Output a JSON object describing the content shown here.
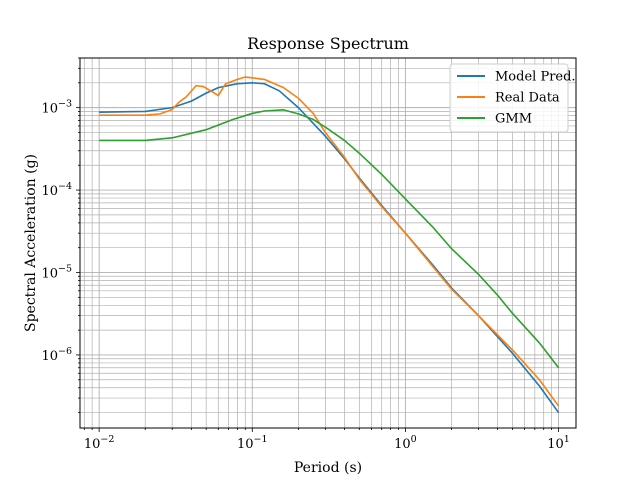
{
  "chart_data": {
    "type": "line",
    "title": "Response Spectrum",
    "xlabel": "Period (s)",
    "ylabel": "Spectral Acceleration (g)",
    "x_scale": "log",
    "y_scale": "log",
    "xlim": [
      0.0075,
      13
    ],
    "ylim": [
      1.3e-07,
      0.004
    ],
    "grid": "both, major and minor",
    "legend_position": "top-right",
    "x_ticks": [
      {
        "value": 0.01,
        "mantissa": "10",
        "exp": "−2"
      },
      {
        "value": 0.1,
        "mantissa": "10",
        "exp": "−1"
      },
      {
        "value": 1,
        "mantissa": "10",
        "exp": "0"
      },
      {
        "value": 10,
        "mantissa": "10",
        "exp": "1"
      }
    ],
    "y_ticks": [
      {
        "value": 1e-06,
        "mantissa": "10",
        "exp": "−6"
      },
      {
        "value": 1e-05,
        "mantissa": "10",
        "exp": "−5"
      },
      {
        "value": 0.0001,
        "mantissa": "10",
        "exp": "−4"
      },
      {
        "value": 0.001,
        "mantissa": "10",
        "exp": "−3"
      }
    ],
    "series": [
      {
        "name": "Model Pred.",
        "color": "#1f77b4",
        "points": [
          [
            0.01,
            0.00088
          ],
          [
            0.02,
            0.0009
          ],
          [
            0.03,
            0.001
          ],
          [
            0.04,
            0.0012
          ],
          [
            0.05,
            0.0015
          ],
          [
            0.06,
            0.00175
          ],
          [
            0.08,
            0.00195
          ],
          [
            0.1,
            0.002
          ],
          [
            0.12,
            0.00195
          ],
          [
            0.15,
            0.0016
          ],
          [
            0.2,
            0.001
          ],
          [
            0.3,
            0.00045
          ],
          [
            0.4,
            0.00024
          ],
          [
            0.5,
            0.00014
          ],
          [
            0.7,
            6.5e-05
          ],
          [
            1.0,
            3e-05
          ],
          [
            1.5,
            1.25e-05
          ],
          [
            2.0,
            6.5e-06
          ],
          [
            3.0,
            3e-06
          ],
          [
            5.0,
            1.05e-06
          ],
          [
            7.5,
            4.2e-07
          ],
          [
            10,
            2e-07
          ]
        ]
      },
      {
        "name": "Real Data",
        "color": "#ff7f0e",
        "points": [
          [
            0.01,
            0.00081
          ],
          [
            0.02,
            0.00081
          ],
          [
            0.025,
            0.00084
          ],
          [
            0.03,
            0.00095
          ],
          [
            0.033,
            0.00115
          ],
          [
            0.037,
            0.00135
          ],
          [
            0.043,
            0.00185
          ],
          [
            0.048,
            0.0018
          ],
          [
            0.055,
            0.00155
          ],
          [
            0.06,
            0.0014
          ],
          [
            0.067,
            0.00195
          ],
          [
            0.08,
            0.0022
          ],
          [
            0.09,
            0.00235
          ],
          [
            0.1,
            0.0023
          ],
          [
            0.12,
            0.0022
          ],
          [
            0.16,
            0.00175
          ],
          [
            0.2,
            0.0013
          ],
          [
            0.25,
            0.00085
          ],
          [
            0.3,
            0.0005
          ],
          [
            0.4,
            0.00025
          ],
          [
            0.5,
            0.000135
          ],
          [
            0.7,
            6.3e-05
          ],
          [
            1.0,
            3e-05
          ],
          [
            1.5,
            1.2e-05
          ],
          [
            2.0,
            6.3e-06
          ],
          [
            3.0,
            3e-06
          ],
          [
            5.0,
            1.15e-06
          ],
          [
            7.5,
            5e-07
          ],
          [
            10,
            2.4e-07
          ]
        ]
      },
      {
        "name": "GMM",
        "color": "#2ca02c",
        "points": [
          [
            0.01,
            0.0004
          ],
          [
            0.02,
            0.0004
          ],
          [
            0.03,
            0.00043
          ],
          [
            0.05,
            0.00054
          ],
          [
            0.075,
            0.00072
          ],
          [
            0.1,
            0.00085
          ],
          [
            0.12,
            0.00091
          ],
          [
            0.16,
            0.00094
          ],
          [
            0.2,
            0.00084
          ],
          [
            0.25,
            0.00072
          ],
          [
            0.3,
            0.00058
          ],
          [
            0.4,
            0.0004
          ],
          [
            0.5,
            0.00028
          ],
          [
            0.7,
            0.000155
          ],
          [
            1.0,
            7.8e-05
          ],
          [
            1.5,
            3.6e-05
          ],
          [
            2.0,
            1.95e-05
          ],
          [
            3.0,
            9.5e-06
          ],
          [
            4.0,
            5.3e-06
          ],
          [
            5.0,
            3.2e-06
          ],
          [
            7.5,
            1.4e-06
          ],
          [
            10,
            7e-07
          ]
        ]
      }
    ]
  }
}
